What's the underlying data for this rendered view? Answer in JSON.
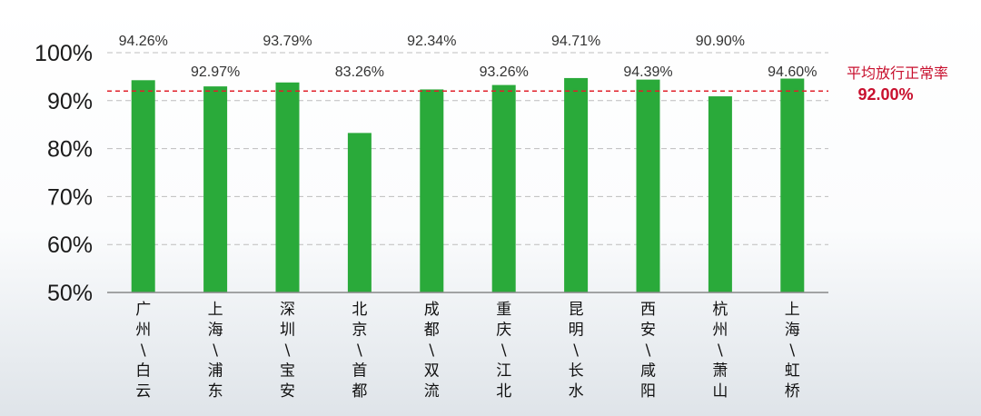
{
  "chart_data": {
    "type": "bar",
    "categories": [
      "广州\\白云",
      "上海\\浦东",
      "深圳\\宝安",
      "北京\\首都",
      "成都\\双流",
      "重庆\\江北",
      "昆明\\长水",
      "西安\\咸阳",
      "杭州\\萧山",
      "上海\\虹桥"
    ],
    "category_lines": [
      [
        "广",
        "州",
        "\\",
        "白",
        "云"
      ],
      [
        "上",
        "海",
        "\\",
        "浦",
        "东"
      ],
      [
        "深",
        "圳",
        "\\",
        "宝",
        "安"
      ],
      [
        "北",
        "京",
        "\\",
        "首",
        "都"
      ],
      [
        "成",
        "都",
        "\\",
        "双",
        "流"
      ],
      [
        "重",
        "庆",
        "\\",
        "江",
        "北"
      ],
      [
        "昆",
        "明",
        "\\",
        "长",
        "水"
      ],
      [
        "西",
        "安",
        "\\",
        "咸",
        "阳"
      ],
      [
        "杭",
        "州",
        "\\",
        "萧",
        "山"
      ],
      [
        "上",
        "海",
        "\\",
        "虹",
        "桥"
      ]
    ],
    "values": [
      94.26,
      92.97,
      93.79,
      83.26,
      92.34,
      93.26,
      94.71,
      94.39,
      90.9,
      94.6
    ],
    "value_labels": [
      "94.26%",
      "92.97%",
      "93.79%",
      "83.26%",
      "92.34%",
      "93.26%",
      "94.71%",
      "94.39%",
      "90.90%",
      "94.60%"
    ],
    "bar_color": "#2aaa3a",
    "ylim": [
      50,
      100
    ],
    "yticks": [
      50,
      60,
      70,
      80,
      90,
      100
    ],
    "ytick_labels": [
      "50%",
      "60%",
      "70%",
      "80%",
      "90%",
      "100%"
    ],
    "grid": "horizontal dashed",
    "reference_line": {
      "value": 92.0,
      "label": "平均放行正常率",
      "value_label": "92.00%",
      "color": "#e0202a"
    },
    "title": "",
    "xlabel": "",
    "ylabel": ""
  }
}
